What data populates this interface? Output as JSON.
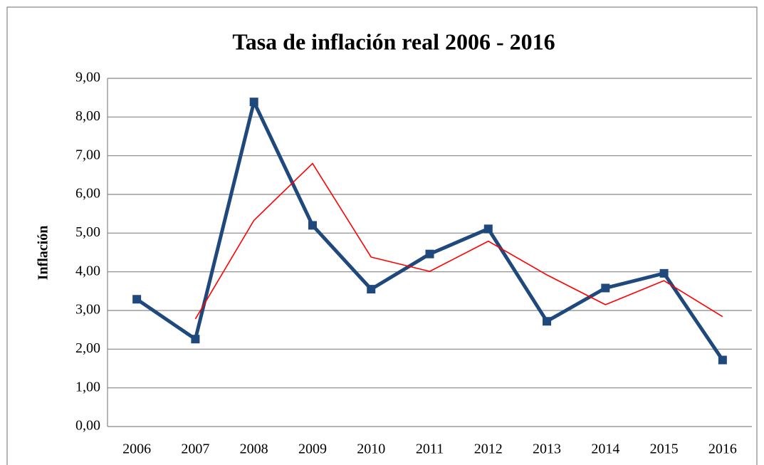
{
  "chart_data": {
    "type": "line",
    "title": "Tasa de inflación real 2006 - 2016",
    "ylabel": "Inflación",
    "categories": [
      "2006",
      "2007",
      "2008",
      "2009",
      "2010",
      "2011",
      "2012",
      "2013",
      "2014",
      "2015",
      "2016"
    ],
    "series": [
      {
        "color": "#1f497d",
        "values": [
          3.29,
          2.26,
          8.39,
          5.2,
          3.55,
          4.46,
          5.11,
          2.72,
          3.58,
          3.96,
          1.72
        ]
      },
      {
        "color": "#ff0000",
        "values": [
          null,
          2.78,
          5.33,
          6.8,
          4.38,
          4.01,
          4.79,
          3.92,
          3.15,
          3.77,
          2.84
        ]
      }
    ],
    "ylim": [
      0,
      9
    ],
    "yticks": [
      {
        "value": 0,
        "label": "0,00"
      },
      {
        "value": 1,
        "label": "1,00"
      },
      {
        "value": 2,
        "label": "2,00"
      },
      {
        "value": 3,
        "label": "3,00"
      },
      {
        "value": 4,
        "label": "4,00"
      },
      {
        "value": 5,
        "label": "5,00"
      },
      {
        "value": 6,
        "label": "6,00"
      },
      {
        "value": 7,
        "label": "7,00"
      },
      {
        "value": 8,
        "label": "8,00"
      },
      {
        "value": 9,
        "label": "9,00"
      }
    ],
    "grid": true
  }
}
